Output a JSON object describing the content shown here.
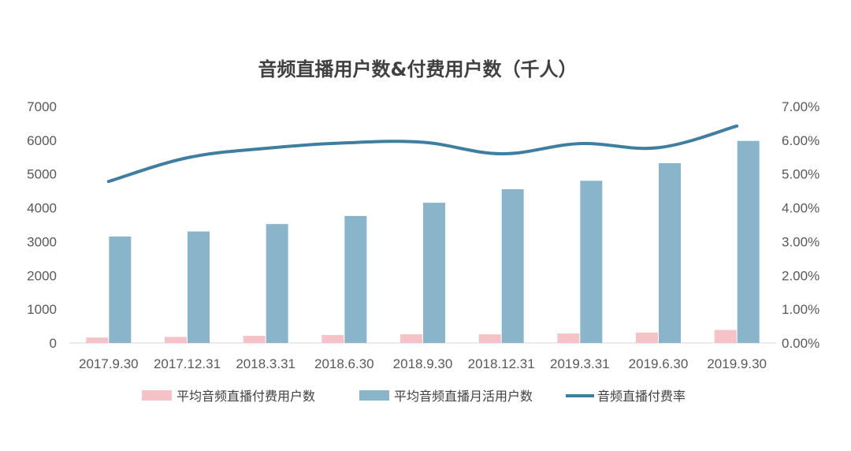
{
  "chart_data": {
    "type": "bar",
    "title": "音频直播用户数&付费用户数（千人）",
    "categories": [
      "2017.9.30",
      "2017.12.31",
      "2018.3.31",
      "2018.6.30",
      "2018.9.30",
      "2018.12.31",
      "2019.3.31",
      "2019.6.30",
      "2019.9.30"
    ],
    "series": [
      {
        "name": "平均音频直播付费用户数",
        "type": "bar",
        "axis": "left",
        "color": "#F4C2C7",
        "values": [
          160,
          180,
          210,
          235,
          255,
          255,
          280,
          310,
          385
        ]
      },
      {
        "name": "平均音频直播月活用户数",
        "type": "bar",
        "axis": "left",
        "color": "#89B4CA",
        "values": [
          3150,
          3300,
          3520,
          3760,
          4150,
          4550,
          4800,
          5320,
          5980
        ]
      },
      {
        "name": "音频直播付费率",
        "type": "line",
        "axis": "right",
        "color": "#3F7EA0",
        "values": [
          0.0478,
          0.0548,
          0.0576,
          0.0592,
          0.0594,
          0.056,
          0.059,
          0.0578,
          0.0642
        ]
      }
    ],
    "y_left": {
      "min": 0,
      "max": 7000,
      "ticks": [
        "0",
        "1000",
        "2000",
        "3000",
        "4000",
        "5000",
        "6000",
        "7000"
      ]
    },
    "y_right": {
      "min": 0,
      "max": 0.07,
      "ticks": [
        "0.00%",
        "1.00%",
        "2.00%",
        "3.00%",
        "4.00%",
        "5.00%",
        "6.00%",
        "7.00%"
      ]
    },
    "grid": false,
    "legend_position": "bottom"
  }
}
